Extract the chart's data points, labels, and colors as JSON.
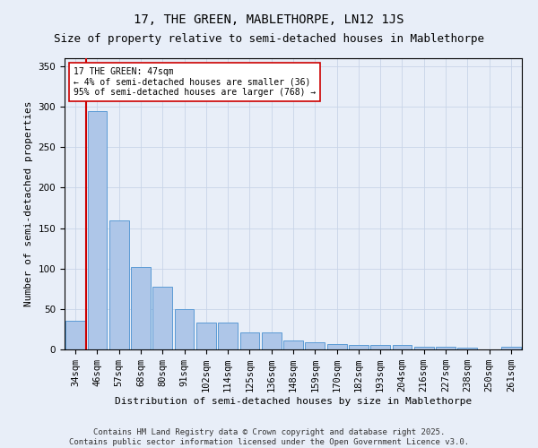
{
  "title": "17, THE GREEN, MABLETHORPE, LN12 1JS",
  "subtitle": "Size of property relative to semi-detached houses in Mablethorpe",
  "xlabel": "Distribution of semi-detached houses by size in Mablethorpe",
  "ylabel": "Number of semi-detached properties",
  "categories": [
    "34sqm",
    "46sqm",
    "57sqm",
    "68sqm",
    "80sqm",
    "91sqm",
    "102sqm",
    "114sqm",
    "125sqm",
    "136sqm",
    "148sqm",
    "159sqm",
    "170sqm",
    "182sqm",
    "193sqm",
    "204sqm",
    "216sqm",
    "227sqm",
    "238sqm",
    "250sqm",
    "261sqm"
  ],
  "values": [
    36,
    295,
    159,
    102,
    78,
    50,
    33,
    33,
    21,
    21,
    11,
    9,
    7,
    5,
    5,
    5,
    3,
    3,
    2,
    0,
    3
  ],
  "bar_color": "#aec6e8",
  "bar_edge_color": "#5b9bd5",
  "grid_color": "#c8d4e8",
  "background_color": "#e8eef8",
  "highlight_line_color": "#cc0000",
  "annotation_text": "17 THE GREEN: 47sqm\n← 4% of semi-detached houses are smaller (36)\n95% of semi-detached houses are larger (768) →",
  "annotation_box_color": "#ffffff",
  "annotation_box_edge": "#cc0000",
  "ylim": [
    0,
    360
  ],
  "yticks": [
    0,
    50,
    100,
    150,
    200,
    250,
    300,
    350
  ],
  "footer": "Contains HM Land Registry data © Crown copyright and database right 2025.\nContains public sector information licensed under the Open Government Licence v3.0.",
  "title_fontsize": 10,
  "subtitle_fontsize": 9,
  "axis_fontsize": 8,
  "tick_fontsize": 7.5,
  "footer_fontsize": 6.5
}
